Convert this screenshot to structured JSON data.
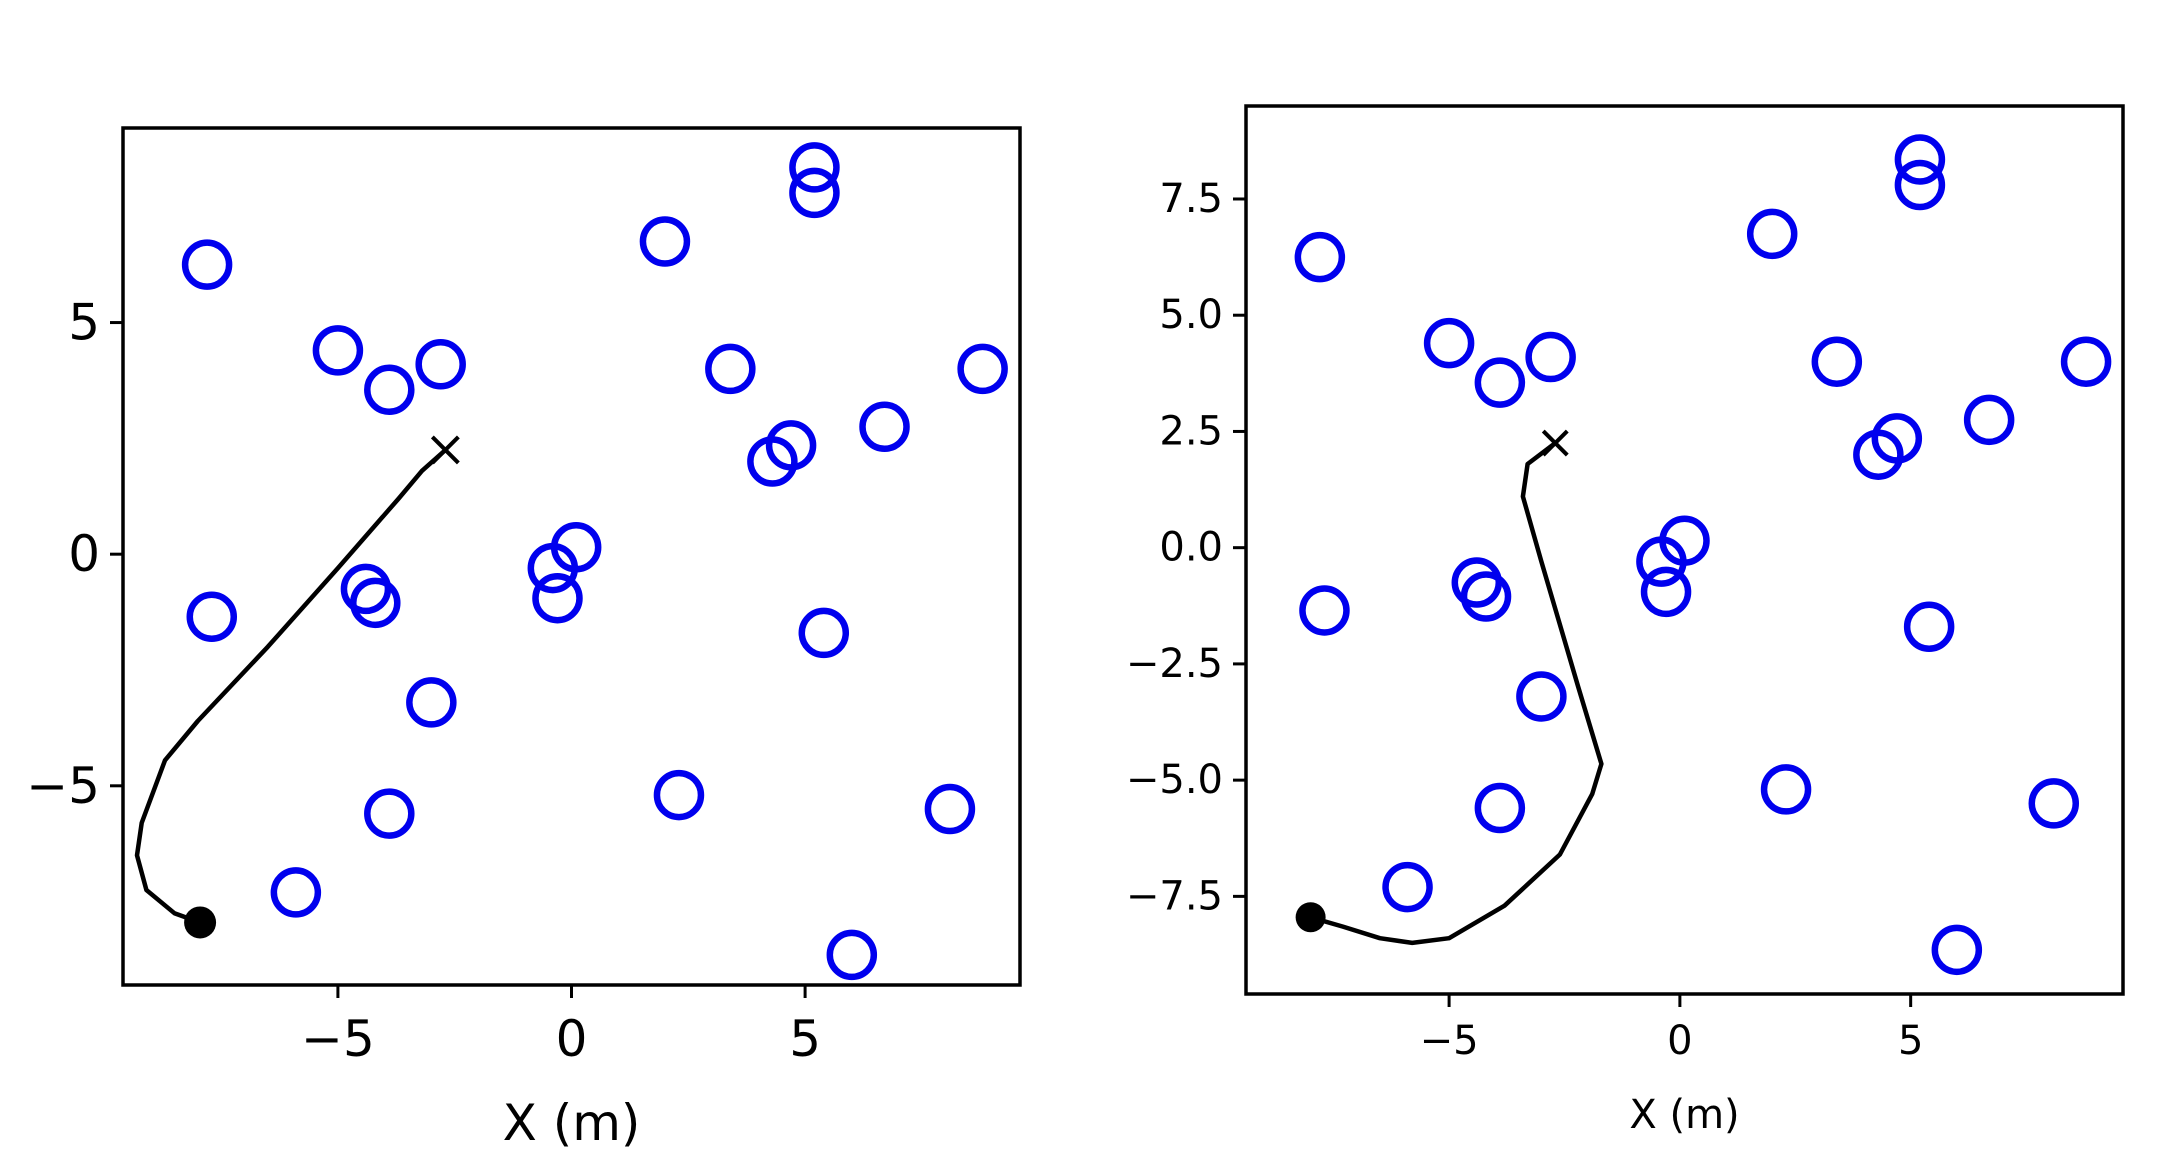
{
  "chart_data": [
    {
      "type": "scatter",
      "title": "",
      "xlabel": "X (m)",
      "ylabel": "",
      "xlim": [
        -9.6,
        9.6
      ],
      "ylim": [
        -9.3,
        9.2
      ],
      "xticks": [
        -5,
        0,
        5
      ],
      "xtick_labels": [
        "−5",
        "0",
        "5"
      ],
      "yticks": [
        5,
        0,
        -5
      ],
      "ytick_labels": [
        "5",
        "0",
        "−5"
      ],
      "grid": false,
      "legend": "none",
      "colors": {
        "obstacle": "#0000ee",
        "path": "#000000"
      },
      "obstacles": [
        {
          "x": -7.8,
          "y": 6.25
        },
        {
          "x": -5.0,
          "y": 4.4
        },
        {
          "x": -3.9,
          "y": 3.55
        },
        {
          "x": -2.8,
          "y": 4.1
        },
        {
          "x": 2.0,
          "y": 6.75
        },
        {
          "x": 5.2,
          "y": 8.35
        },
        {
          "x": 5.2,
          "y": 7.8
        },
        {
          "x": 3.4,
          "y": 4.0
        },
        {
          "x": 8.8,
          "y": 4.0
        },
        {
          "x": 4.3,
          "y": 2.0
        },
        {
          "x": 4.7,
          "y": 2.35
        },
        {
          "x": 6.7,
          "y": 2.75
        },
        {
          "x": -7.7,
          "y": -1.35
        },
        {
          "x": -4.4,
          "y": -0.75
        },
        {
          "x": -4.2,
          "y": -1.05
        },
        {
          "x": -0.4,
          "y": -0.3
        },
        {
          "x": 0.1,
          "y": 0.15
        },
        {
          "x": -0.3,
          "y": -0.95
        },
        {
          "x": -3.0,
          "y": -3.2
        },
        {
          "x": 5.4,
          "y": -1.7
        },
        {
          "x": -3.9,
          "y": -5.6
        },
        {
          "x": 2.3,
          "y": -5.2
        },
        {
          "x": 8.1,
          "y": -5.5
        },
        {
          "x": -5.9,
          "y": -7.3
        },
        {
          "x": 6.0,
          "y": -8.65
        }
      ],
      "path": [
        {
          "x": -7.95,
          "y": -7.95
        },
        {
          "x": -8.5,
          "y": -7.75
        },
        {
          "x": -9.1,
          "y": -7.25
        },
        {
          "x": -9.3,
          "y": -6.5
        },
        {
          "x": -9.2,
          "y": -5.8
        },
        {
          "x": -8.7,
          "y": -4.45
        },
        {
          "x": -8.0,
          "y": -3.6
        },
        {
          "x": -6.5,
          "y": -2.0
        },
        {
          "x": -5.0,
          "y": -0.3
        },
        {
          "x": -3.7,
          "y": 1.2
        },
        {
          "x": -3.2,
          "y": 1.8
        },
        {
          "x": -2.7,
          "y": 2.25
        }
      ],
      "start": {
        "x": -7.95,
        "y": -7.95
      },
      "goal": {
        "x": -2.7,
        "y": 2.25
      }
    },
    {
      "type": "scatter",
      "title": "",
      "xlabel": "X (m)",
      "ylabel": "",
      "xlim": [
        -9.4,
        9.6
      ],
      "ylim": [
        -9.6,
        9.5
      ],
      "xticks": [
        -5,
        0,
        5
      ],
      "xtick_labels": [
        "−5",
        "0",
        "5"
      ],
      "yticks": [
        7.5,
        5.0,
        2.5,
        0.0,
        -2.5,
        -5.0,
        -7.5
      ],
      "ytick_labels": [
        "7.5",
        "5.0",
        "2.5",
        "0.0",
        "−2.5",
        "−5.0",
        "−7.5"
      ],
      "grid": false,
      "legend": "none",
      "colors": {
        "obstacle": "#0000ee",
        "path": "#000000"
      },
      "obstacles": [
        {
          "x": -7.8,
          "y": 6.25
        },
        {
          "x": -5.0,
          "y": 4.4
        },
        {
          "x": -3.9,
          "y": 3.55
        },
        {
          "x": -2.8,
          "y": 4.1
        },
        {
          "x": 2.0,
          "y": 6.75
        },
        {
          "x": 5.2,
          "y": 8.35
        },
        {
          "x": 5.2,
          "y": 7.8
        },
        {
          "x": 3.4,
          "y": 4.0
        },
        {
          "x": 8.8,
          "y": 4.0
        },
        {
          "x": 4.3,
          "y": 2.0
        },
        {
          "x": 4.7,
          "y": 2.35
        },
        {
          "x": 6.7,
          "y": 2.75
        },
        {
          "x": -7.7,
          "y": -1.35
        },
        {
          "x": -4.4,
          "y": -0.75
        },
        {
          "x": -4.2,
          "y": -1.05
        },
        {
          "x": -0.4,
          "y": -0.3
        },
        {
          "x": 0.1,
          "y": 0.15
        },
        {
          "x": -0.3,
          "y": -0.95
        },
        {
          "x": -3.0,
          "y": -3.2
        },
        {
          "x": 5.4,
          "y": -1.7
        },
        {
          "x": -3.9,
          "y": -5.6
        },
        {
          "x": 2.3,
          "y": -5.2
        },
        {
          "x": 8.1,
          "y": -5.5
        },
        {
          "x": -5.9,
          "y": -7.3
        },
        {
          "x": 6.0,
          "y": -8.65
        }
      ],
      "path": [
        {
          "x": -8.0,
          "y": -7.95
        },
        {
          "x": -7.3,
          "y": -8.15
        },
        {
          "x": -6.5,
          "y": -8.4
        },
        {
          "x": -5.8,
          "y": -8.5
        },
        {
          "x": -5.0,
          "y": -8.4
        },
        {
          "x": -3.8,
          "y": -7.7
        },
        {
          "x": -2.6,
          "y": -6.6
        },
        {
          "x": -1.9,
          "y": -5.3
        },
        {
          "x": -1.7,
          "y": -4.65
        },
        {
          "x": -2.2,
          "y": -3.0
        },
        {
          "x": -3.0,
          "y": -0.3
        },
        {
          "x": -3.4,
          "y": 1.1
        },
        {
          "x": -3.3,
          "y": 1.8
        },
        {
          "x": -2.7,
          "y": 2.25
        }
      ],
      "start": {
        "x": -8.0,
        "y": -7.95
      },
      "goal": {
        "x": -2.7,
        "y": 2.25
      }
    }
  ]
}
